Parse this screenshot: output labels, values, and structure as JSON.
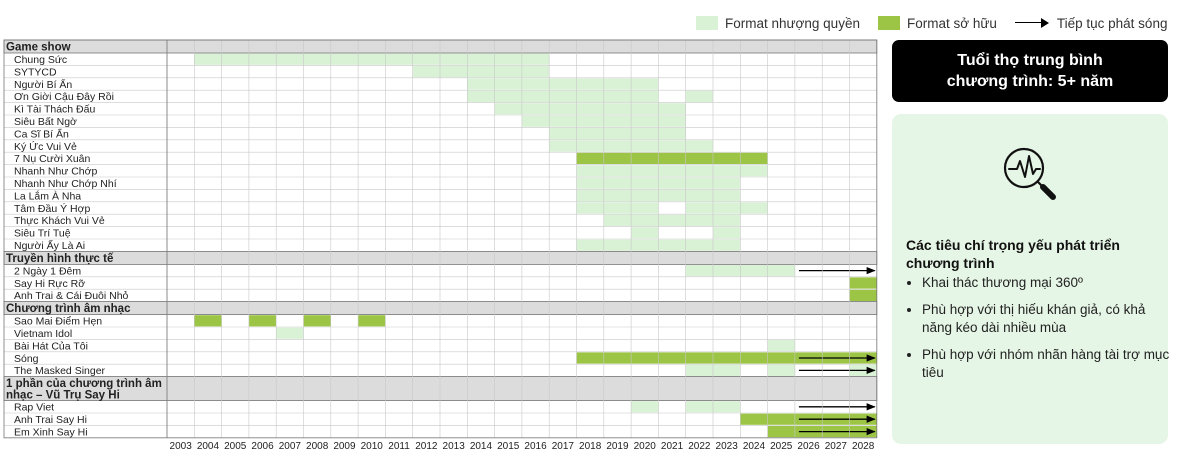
{
  "legend": {
    "licensed_label": "Format nhượng quyền",
    "owned_label": "Format sở hữu",
    "arrow_label": "Tiếp tục phát sóng",
    "licensed_color": "#d9f2d5",
    "owned_color": "#9cc545"
  },
  "lifespan": {
    "line1": "Tuổi thọ trung bình",
    "line2": "chương trình: 5+ năm"
  },
  "criteria": {
    "title": "Các tiêu chí trọng yếu phát triển chương trình",
    "items": [
      "Khai thác thương mại 360º",
      "Phù hợp với thị hiếu khán giả, có khả năng kéo dài nhiều mùa",
      "Phù hợp với nhóm nhãn hàng tài trợ mục tiêu"
    ],
    "icon": "heartbeat-magnifier-icon"
  },
  "chart_data": {
    "type": "gantt",
    "years": [
      "2003",
      "2004",
      "2005",
      "2006",
      "2007",
      "2008",
      "2009",
      "2010",
      "2011",
      "2012",
      "2013",
      "2014",
      "2015",
      "2016",
      "2017",
      "2018",
      "2019",
      "2020",
      "2021",
      "2022",
      "2023",
      "2024",
      "2025",
      "2026",
      "2027",
      "2028"
    ],
    "groups": [
      {
        "name": "Game show",
        "rows": [
          {
            "name": "Chung Sức",
            "spans": [
              [
                2004,
                2016,
                "licensed"
              ]
            ]
          },
          {
            "name": "SYTYCD",
            "spans": [
              [
                2012,
                2016,
                "licensed"
              ]
            ]
          },
          {
            "name": "Người Bí Ẩn",
            "spans": [
              [
                2014,
                2020,
                "licensed"
              ]
            ]
          },
          {
            "name": "Ơn Giời Cậu Đây Rồi",
            "spans": [
              [
                2014,
                2020,
                "licensed"
              ],
              [
                2022,
                2022,
                "licensed"
              ]
            ]
          },
          {
            "name": "Kì Tài Thách Đấu",
            "spans": [
              [
                2015,
                2021,
                "licensed"
              ]
            ]
          },
          {
            "name": "Siêu Bất Ngờ",
            "spans": [
              [
                2016,
                2021,
                "licensed"
              ]
            ]
          },
          {
            "name": "Ca Sĩ Bí Ẩn",
            "spans": [
              [
                2017,
                2021,
                "licensed"
              ]
            ]
          },
          {
            "name": "Ký Ức Vui Vẻ",
            "spans": [
              [
                2017,
                2022,
                "licensed"
              ]
            ]
          },
          {
            "name": "7 Nụ Cười Xuân",
            "spans": [
              [
                2018,
                2024,
                "owned"
              ]
            ]
          },
          {
            "name": "Nhanh Như Chớp",
            "spans": [
              [
                2018,
                2024,
                "licensed"
              ]
            ]
          },
          {
            "name": "Nhanh Như Chớp Nhí",
            "spans": [
              [
                2018,
                2023,
                "licensed"
              ]
            ]
          },
          {
            "name": "La Lắm À Nha",
            "spans": [
              [
                2018,
                2020,
                "licensed"
              ],
              [
                2021,
                2021,
                "licensed"
              ],
              [
                2022,
                2022,
                "licensed"
              ],
              [
                2023,
                2023,
                "licensed"
              ]
            ]
          },
          {
            "name": "Tâm Đầu Ý Hợp",
            "spans": [
              [
                2018,
                2020,
                "licensed"
              ],
              [
                2022,
                2022,
                "licensed"
              ],
              [
                2023,
                2024,
                "licensed"
              ]
            ]
          },
          {
            "name": "Thực Khách Vui Vẻ",
            "spans": [
              [
                2019,
                2020,
                "licensed"
              ],
              [
                2021,
                2023,
                "licensed"
              ]
            ]
          },
          {
            "name": "Siêu Trí Tuệ",
            "spans": [
              [
                2020,
                2020,
                "licensed"
              ],
              [
                2023,
                2023,
                "licensed"
              ]
            ]
          },
          {
            "name": "Người Ấy Là Ai",
            "spans": [
              [
                2018,
                2020,
                "licensed"
              ],
              [
                2021,
                2023,
                "licensed"
              ]
            ]
          }
        ]
      },
      {
        "name": "Truyền hình thực tế",
        "rows": [
          {
            "name": "2 Ngày 1 Đêm",
            "spans": [
              [
                2022,
                2025,
                "licensed"
              ]
            ],
            "arrow": [
              2026,
              2028
            ]
          },
          {
            "name": "Say Hi Rực Rỡ",
            "spans": [
              [
                2028,
                2028,
                "owned"
              ]
            ]
          },
          {
            "name": "Anh Trai & Cái Đuôi Nhỏ",
            "spans": [
              [
                2028,
                2028,
                "owned"
              ]
            ]
          }
        ]
      },
      {
        "name": "Chương trình âm nhạc",
        "rows": [
          {
            "name": "Sao Mai Điểm Hẹn",
            "spans": [
              [
                2004,
                2004,
                "owned"
              ],
              [
                2006,
                2006,
                "owned"
              ],
              [
                2008,
                2008,
                "owned"
              ],
              [
                2010,
                2010,
                "owned"
              ]
            ]
          },
          {
            "name": "Vietnam Idol",
            "spans": [
              [
                2007,
                2007,
                "licensed"
              ]
            ]
          },
          {
            "name": "Bài Hát Của Tôi",
            "spans": [
              [
                2025,
                2025,
                "licensed"
              ]
            ]
          },
          {
            "name": "Sóng",
            "spans": [
              [
                2018,
                2028,
                "owned"
              ]
            ],
            "arrow": [
              2026,
              2028
            ]
          },
          {
            "name": "The Masked Singer",
            "spans": [
              [
                2022,
                2023,
                "licensed"
              ],
              [
                2025,
                2025,
                "licensed"
              ],
              [
                2028,
                2028,
                "licensed"
              ]
            ],
            "arrow": [
              2026,
              2028
            ]
          }
        ]
      },
      {
        "name": "1 phần của chương trình âm nhạc – Vũ Trụ Say Hi",
        "name_lines": [
          "1 phần của chương trình âm",
          "nhạc – Vũ Trụ Say Hi"
        ],
        "rows": [
          {
            "name": "Rap Viet",
            "spans": [
              [
                2020,
                2020,
                "licensed"
              ],
              [
                2022,
                2023,
                "licensed"
              ]
            ],
            "arrow": [
              2026,
              2028
            ]
          },
          {
            "name": "Anh Trai Say Hi",
            "spans": [
              [
                2024,
                2028,
                "owned"
              ]
            ],
            "arrow": [
              2026,
              2028
            ]
          },
          {
            "name": "Em Xinh Say Hi",
            "spans": [
              [
                2025,
                2025,
                "owned"
              ],
              [
                2026,
                2028,
                "owned"
              ]
            ],
            "arrow": [
              2026,
              2028
            ]
          }
        ]
      }
    ]
  }
}
